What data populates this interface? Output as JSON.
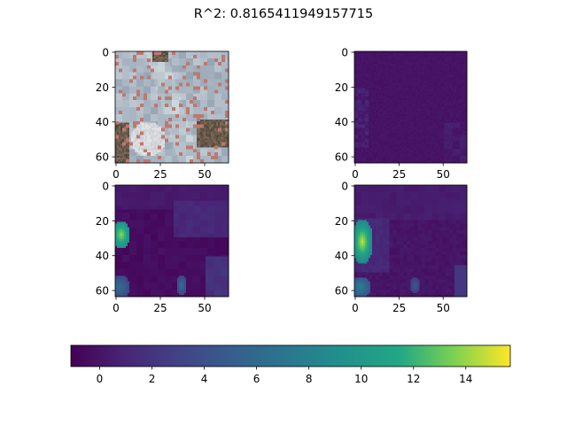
{
  "figure": {
    "title": "R^2: 0.8165411949157715"
  },
  "chart_data": [
    {
      "type": "heatmap",
      "panel": "top-left",
      "content": "RGB aerial image (64x64) of a site with buildings and trees",
      "x_ticks": [
        "0",
        "25",
        "50"
      ],
      "y_ticks": [
        "0",
        "20",
        "40",
        "60"
      ],
      "xlim": [
        -0.5,
        63.5
      ],
      "ylim": [
        63.5,
        -0.5
      ]
    },
    {
      "type": "heatmap",
      "panel": "top-right",
      "content": "Predicted map, mostly low values (~0-1) with slightly higher patches near the left edge",
      "colormap": "viridis",
      "x_ticks": [
        "0",
        "25",
        "50"
      ],
      "y_ticks": [
        "0",
        "20",
        "40",
        "60"
      ],
      "xlim": [
        -0.5,
        63.5
      ],
      "ylim": [
        63.5,
        -0.5
      ]
    },
    {
      "type": "heatmap",
      "panel": "bottom-left",
      "content": "Ground truth map: high values (~13-14) near the left edge at rows ~22-35, moderate values near bottom",
      "colormap": "viridis",
      "x_ticks": [
        "0",
        "25",
        "50"
      ],
      "y_ticks": [
        "0",
        "20",
        "40",
        "60"
      ],
      "xlim": [
        -0.5,
        63.5
      ],
      "ylim": [
        63.5,
        -0.5
      ]
    },
    {
      "type": "heatmap",
      "panel": "bottom-right",
      "content": "Second map: high values (~14-15) near the left edge at rows ~22-45, moderate values near bottom-left",
      "colormap": "viridis",
      "x_ticks": [
        "0",
        "25",
        "50"
      ],
      "y_ticks": [
        "0",
        "20",
        "40",
        "60"
      ],
      "xlim": [
        -0.5,
        63.5
      ],
      "ylim": [
        63.5,
        -0.5
      ]
    }
  ],
  "colorbar": {
    "colormap": "viridis",
    "vmin": -1.1,
    "vmax": 15.7,
    "orientation": "horizontal",
    "ticks": [
      0,
      2,
      4,
      6,
      8,
      10,
      12,
      14
    ],
    "tick_labels": [
      "0",
      "2",
      "4",
      "6",
      "8",
      "10",
      "12",
      "14"
    ]
  },
  "colors": {
    "viridis_low": "#440154",
    "viridis_mid": "#21918c",
    "viridis_high": "#fde725"
  }
}
